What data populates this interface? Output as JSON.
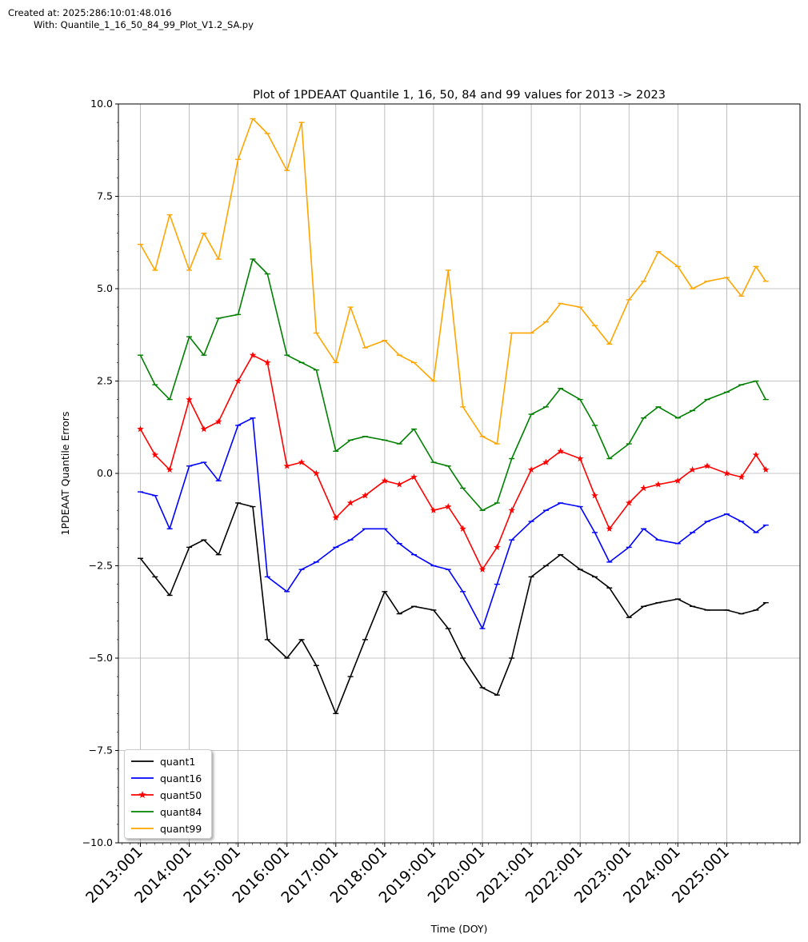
{
  "header": {
    "created": "Created at: 2025:286:10:01:48.016",
    "with": "With: Quantile_1_16_50_84_99_Plot_V1.2_SA.py"
  },
  "chart_data": {
    "type": "line",
    "title": "Plot of 1PDEAAT Quantile 1, 16, 50, 84 and 99  values for 2013 -> 2023",
    "xlabel": "Time (DOY)",
    "ylabel": "1PDEAAT Quantile Errors",
    "ylim": [
      -10,
      10
    ],
    "xlim": [
      2012.55,
      2026.5
    ],
    "yticks": [
      -10,
      -7.5,
      -5,
      -2.5,
      0,
      2.5,
      5,
      7.5,
      10
    ],
    "ytick_labels": [
      "−10.0",
      "−7.5",
      "−5.0",
      "−2.5",
      "0.0",
      "2.5",
      "5.0",
      "7.5",
      "10.0"
    ],
    "xticks": [
      2013,
      2014,
      2015,
      2016,
      2017,
      2018,
      2019,
      2020,
      2021,
      2022,
      2023,
      2024,
      2025
    ],
    "xtick_labels": [
      "2013:001",
      "2014:001",
      "2015:001",
      "2016:001",
      "2017:001",
      "2018:001",
      "2019:001",
      "2020:001",
      "2021:001",
      "2022:001",
      "2023:001",
      "2024:001",
      "2025:001"
    ],
    "grid": true,
    "legend_position": "lower-left",
    "series": [
      {
        "name": "quant1",
        "color": "#000000",
        "marker": "tick",
        "x": [
          2013.0,
          2013.3,
          2013.6,
          2014.0,
          2014.3,
          2014.6,
          2015.0,
          2015.3,
          2015.6,
          2016.0,
          2016.3,
          2016.6,
          2017.0,
          2017.3,
          2017.6,
          2018.0,
          2018.3,
          2018.6,
          2019.0,
          2019.3,
          2019.6,
          2020.0,
          2020.3,
          2020.6,
          2021.0,
          2021.3,
          2021.6,
          2022.0,
          2022.3,
          2022.6,
          2023.0,
          2023.3,
          2023.6,
          2024.0,
          2024.3,
          2024.6,
          2025.0,
          2025.3,
          2025.6,
          2025.8
        ],
        "values": [
          -2.3,
          -2.8,
          -3.3,
          -2.0,
          -1.8,
          -2.2,
          -0.8,
          -0.9,
          -4.5,
          -5.0,
          -4.5,
          -5.2,
          -6.5,
          -5.5,
          -4.5,
          -3.2,
          -3.8,
          -3.6,
          -3.7,
          -4.2,
          -5.0,
          -5.8,
          -6.0,
          -5.0,
          -2.8,
          -2.5,
          -2.2,
          -2.6,
          -2.8,
          -3.1,
          -3.9,
          -3.6,
          -3.5,
          -3.4,
          -3.6,
          -3.7,
          -3.7,
          -3.8,
          -3.7,
          -3.5
        ]
      },
      {
        "name": "quant16",
        "color": "#0000ff",
        "marker": "tick",
        "x": [
          2013.0,
          2013.3,
          2013.6,
          2014.0,
          2014.3,
          2014.6,
          2015.0,
          2015.3,
          2015.6,
          2016.0,
          2016.3,
          2016.6,
          2017.0,
          2017.3,
          2017.6,
          2018.0,
          2018.3,
          2018.6,
          2019.0,
          2019.3,
          2019.6,
          2020.0,
          2020.3,
          2020.6,
          2021.0,
          2021.3,
          2021.6,
          2022.0,
          2022.3,
          2022.6,
          2023.0,
          2023.3,
          2023.6,
          2024.0,
          2024.3,
          2024.6,
          2025.0,
          2025.3,
          2025.6,
          2025.8
        ],
        "values": [
          -0.5,
          -0.6,
          -1.5,
          0.2,
          0.3,
          -0.2,
          1.3,
          1.5,
          -2.8,
          -3.2,
          -2.6,
          -2.4,
          -2.0,
          -1.8,
          -1.5,
          -1.5,
          -1.9,
          -2.2,
          -2.5,
          -2.6,
          -3.2,
          -4.2,
          -3.0,
          -1.8,
          -1.3,
          -1.0,
          -0.8,
          -0.9,
          -1.6,
          -2.4,
          -2.0,
          -1.5,
          -1.8,
          -1.9,
          -1.6,
          -1.3,
          -1.1,
          -1.3,
          -1.6,
          -1.4
        ]
      },
      {
        "name": "quant50",
        "color": "#ff0000",
        "marker": "star",
        "x": [
          2013.0,
          2013.3,
          2013.6,
          2014.0,
          2014.3,
          2014.6,
          2015.0,
          2015.3,
          2015.6,
          2016.0,
          2016.3,
          2016.6,
          2017.0,
          2017.3,
          2017.6,
          2018.0,
          2018.3,
          2018.6,
          2019.0,
          2019.3,
          2019.6,
          2020.0,
          2020.3,
          2020.6,
          2021.0,
          2021.3,
          2021.6,
          2022.0,
          2022.3,
          2022.6,
          2023.0,
          2023.3,
          2023.6,
          2024.0,
          2024.3,
          2024.6,
          2025.0,
          2025.3,
          2025.6,
          2025.8
        ],
        "values": [
          1.2,
          0.5,
          0.1,
          2.0,
          1.2,
          1.4,
          2.5,
          3.2,
          3.0,
          0.2,
          0.3,
          0.0,
          -1.2,
          -0.8,
          -0.6,
          -0.2,
          -0.3,
          -0.1,
          -1.0,
          -0.9,
          -1.5,
          -2.6,
          -2.0,
          -1.0,
          0.1,
          0.3,
          0.6,
          0.4,
          -0.6,
          -1.5,
          -0.8,
          -0.4,
          -0.3,
          -0.2,
          0.1,
          0.2,
          0.0,
          -0.1,
          0.5,
          0.1
        ]
      },
      {
        "name": "quant84",
        "color": "#008000",
        "marker": "tick",
        "x": [
          2013.0,
          2013.3,
          2013.6,
          2014.0,
          2014.3,
          2014.6,
          2015.0,
          2015.3,
          2015.6,
          2016.0,
          2016.3,
          2016.6,
          2017.0,
          2017.3,
          2017.6,
          2018.0,
          2018.3,
          2018.6,
          2019.0,
          2019.3,
          2019.6,
          2020.0,
          2020.3,
          2020.6,
          2021.0,
          2021.3,
          2021.6,
          2022.0,
          2022.3,
          2022.6,
          2023.0,
          2023.3,
          2023.6,
          2024.0,
          2024.3,
          2024.6,
          2025.0,
          2025.3,
          2025.6,
          2025.8
        ],
        "values": [
          3.2,
          2.4,
          2.0,
          3.7,
          3.2,
          4.2,
          4.3,
          5.8,
          5.4,
          3.2,
          3.0,
          2.8,
          0.6,
          0.9,
          1.0,
          0.9,
          0.8,
          1.2,
          0.3,
          0.2,
          -0.4,
          -1.0,
          -0.8,
          0.4,
          1.6,
          1.8,
          2.3,
          2.0,
          1.3,
          0.4,
          0.8,
          1.5,
          1.8,
          1.5,
          1.7,
          2.0,
          2.2,
          2.4,
          2.5,
          2.0
        ]
      },
      {
        "name": "quant99",
        "color": "#ffa500",
        "marker": "tick",
        "x": [
          2013.0,
          2013.3,
          2013.6,
          2014.0,
          2014.3,
          2014.6,
          2015.0,
          2015.3,
          2015.6,
          2016.0,
          2016.3,
          2016.6,
          2017.0,
          2017.3,
          2017.6,
          2018.0,
          2018.3,
          2018.6,
          2019.0,
          2019.3,
          2019.6,
          2020.0,
          2020.3,
          2020.6,
          2021.0,
          2021.3,
          2021.6,
          2022.0,
          2022.3,
          2022.6,
          2023.0,
          2023.3,
          2023.6,
          2024.0,
          2024.3,
          2024.6,
          2025.0,
          2025.3,
          2025.6,
          2025.8
        ],
        "values": [
          6.2,
          5.5,
          7.0,
          5.5,
          6.5,
          5.8,
          8.5,
          9.6,
          9.2,
          8.2,
          9.5,
          3.8,
          3.0,
          4.5,
          3.4,
          3.6,
          3.2,
          3.0,
          2.5,
          5.5,
          1.8,
          1.0,
          0.8,
          3.8,
          3.8,
          4.1,
          4.6,
          4.5,
          4.0,
          3.5,
          4.7,
          5.2,
          6.0,
          5.6,
          5.0,
          5.2,
          5.3,
          4.8,
          5.6,
          5.2
        ]
      }
    ]
  }
}
